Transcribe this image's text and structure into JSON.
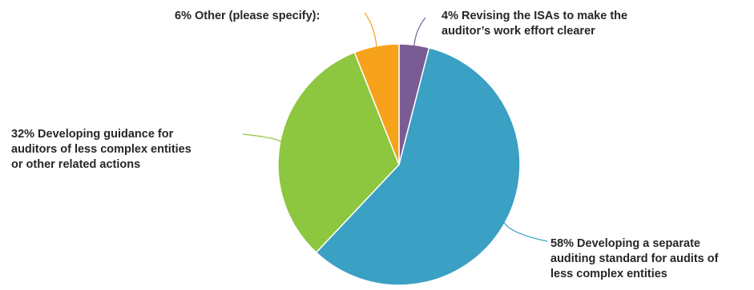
{
  "chart_data": {
    "type": "pie",
    "title": "",
    "slices": [
      {
        "label_lines": [
          "4% Revising the ISAs to make the",
          "auditor’s work effort clearer"
        ],
        "value": 4,
        "color": "#7A5C94"
      },
      {
        "label_lines": [
          "58% Developing a separate",
          "auditing standard for audits of",
          "less complex entities"
        ],
        "value": 58,
        "color": "#3AA0C4"
      },
      {
        "label_lines": [
          "32% Developing guidance for",
          "auditors of less complex entities",
          "or other related actions"
        ],
        "value": 32,
        "color": "#8DC63F"
      },
      {
        "label_lines": [
          "6% Other (please specify):"
        ],
        "value": 6,
        "color": "#F7A21B"
      }
    ],
    "start_angle_deg": 0,
    "direction": "clockwise",
    "legend": "none"
  }
}
